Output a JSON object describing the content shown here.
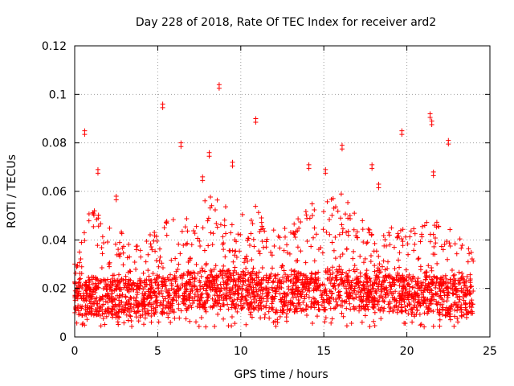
{
  "chart_data": {
    "type": "scatter",
    "title": "Day 228 of 2018, Rate Of TEC Index for receiver ard2",
    "xlabel": "GPS time / hours",
    "ylabel": "ROTI / TECUs",
    "xlim": [
      0,
      25
    ],
    "ylim": [
      0,
      0.12
    ],
    "x_ticks": [
      0,
      5,
      10,
      15,
      20,
      25
    ],
    "x_tick_labels": [
      "0",
      "5",
      "10",
      "15",
      "20",
      "25"
    ],
    "y_ticks": [
      0,
      0.02,
      0.04,
      0.06,
      0.08,
      0.1,
      0.12
    ],
    "y_tick_labels": [
      "0",
      "0.02",
      "0.04",
      "0.06",
      "0.08",
      "0.1",
      "0.12"
    ],
    "grid": true,
    "marker": "+",
    "color": "#ff0000",
    "data_extent_hours": [
      0,
      24
    ],
    "series": [
      {
        "name": "ROTI ard2",
        "notable_points": [
          {
            "x": 0.6,
            "y": 0.085
          },
          {
            "x": 1.4,
            "y": 0.069
          },
          {
            "x": 2.5,
            "y": 0.058
          },
          {
            "x": 5.3,
            "y": 0.096
          },
          {
            "x": 6.4,
            "y": 0.08
          },
          {
            "x": 7.7,
            "y": 0.066
          },
          {
            "x": 8.1,
            "y": 0.076
          },
          {
            "x": 8.7,
            "y": 0.104
          },
          {
            "x": 9.5,
            "y": 0.072
          },
          {
            "x": 10.9,
            "y": 0.09
          },
          {
            "x": 14.1,
            "y": 0.071
          },
          {
            "x": 15.1,
            "y": 0.069
          },
          {
            "x": 16.1,
            "y": 0.079
          },
          {
            "x": 17.9,
            "y": 0.071
          },
          {
            "x": 18.3,
            "y": 0.063
          },
          {
            "x": 19.7,
            "y": 0.085
          },
          {
            "x": 21.4,
            "y": 0.092
          },
          {
            "x": 21.5,
            "y": 0.089
          },
          {
            "x": 22.5,
            "y": 0.081
          },
          {
            "x": 21.6,
            "y": 0.068
          }
        ],
        "activity_envelope": [
          {
            "x": 0,
            "base": 0.015,
            "peak": 0.032
          },
          {
            "x": 1,
            "base": 0.016,
            "peak": 0.055
          },
          {
            "x": 2,
            "base": 0.015,
            "peak": 0.045
          },
          {
            "x": 3,
            "base": 0.015,
            "peak": 0.045
          },
          {
            "x": 4,
            "base": 0.015,
            "peak": 0.04
          },
          {
            "x": 5,
            "base": 0.016,
            "peak": 0.045
          },
          {
            "x": 6,
            "base": 0.017,
            "peak": 0.05
          },
          {
            "x": 7,
            "base": 0.018,
            "peak": 0.052
          },
          {
            "x": 8,
            "base": 0.019,
            "peak": 0.06
          },
          {
            "x": 9,
            "base": 0.019,
            "peak": 0.055
          },
          {
            "x": 10,
            "base": 0.018,
            "peak": 0.05
          },
          {
            "x": 11,
            "base": 0.018,
            "peak": 0.055
          },
          {
            "x": 12,
            "base": 0.017,
            "peak": 0.045
          },
          {
            "x": 13,
            "base": 0.017,
            "peak": 0.045
          },
          {
            "x": 14,
            "base": 0.018,
            "peak": 0.055
          },
          {
            "x": 15,
            "base": 0.018,
            "peak": 0.055
          },
          {
            "x": 16,
            "base": 0.019,
            "peak": 0.06
          },
          {
            "x": 17,
            "base": 0.018,
            "peak": 0.05
          },
          {
            "x": 18,
            "base": 0.018,
            "peak": 0.048
          },
          {
            "x": 19,
            "base": 0.017,
            "peak": 0.045
          },
          {
            "x": 20,
            "base": 0.016,
            "peak": 0.045
          },
          {
            "x": 21,
            "base": 0.016,
            "peak": 0.05
          },
          {
            "x": 22,
            "base": 0.016,
            "peak": 0.048
          },
          {
            "x": 23,
            "base": 0.015,
            "peak": 0.042
          },
          {
            "x": 24,
            "base": 0.015,
            "peak": 0.035
          }
        ]
      }
    ]
  }
}
